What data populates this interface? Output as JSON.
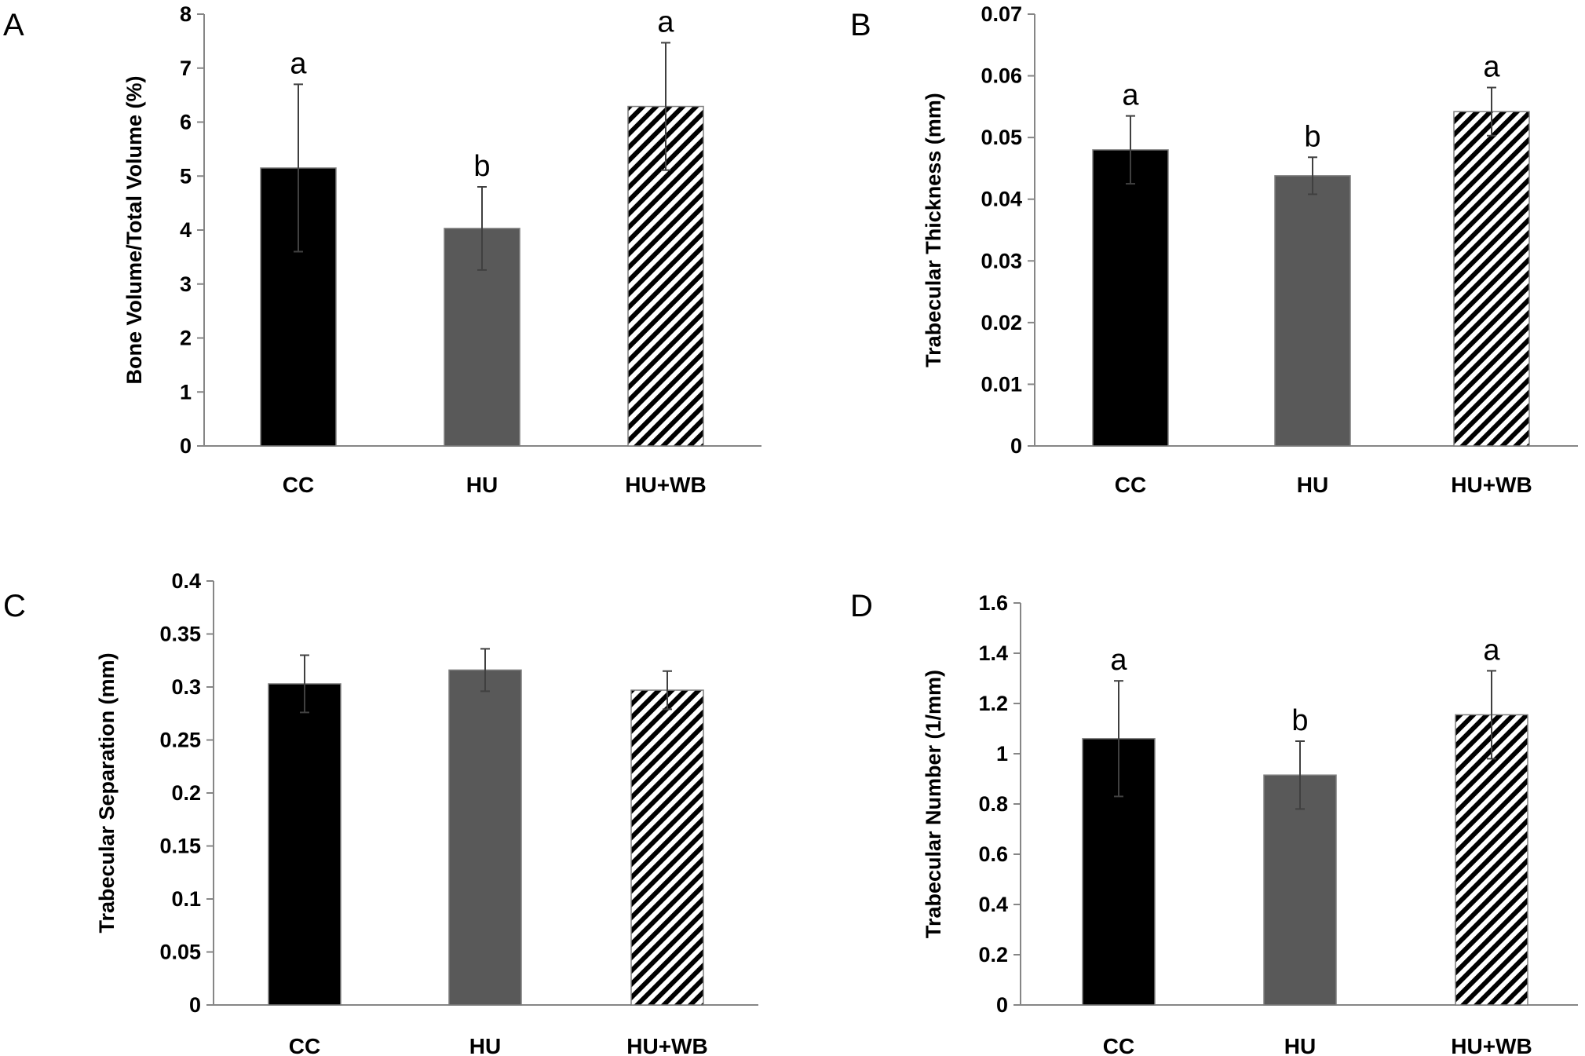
{
  "colors": {
    "CC": "#000000",
    "HU": "#595959",
    "HU+WB": "hatch",
    "axis": "#868686",
    "error": "#404040"
  },
  "chart_data": [
    {
      "panel": "A",
      "type": "bar",
      "categories": [
        "CC",
        "HU",
        "HU+WB"
      ],
      "values": [
        5.15,
        4.03,
        6.29
      ],
      "errors": [
        1.55,
        0.77,
        1.18
      ],
      "significance": [
        "a",
        "b",
        "a"
      ],
      "ylabel": "Bone Volume/Total Volume (%)",
      "ylim": [
        0,
        8
      ],
      "yticks": [
        0,
        1,
        2,
        3,
        4,
        5,
        6,
        7,
        8
      ],
      "ytick_labels": [
        "0",
        "1",
        "2",
        "3",
        "4",
        "5",
        "6",
        "7",
        "8"
      ]
    },
    {
      "panel": "B",
      "type": "bar",
      "categories": [
        "CC",
        "HU",
        "HU+WB"
      ],
      "values": [
        0.048,
        0.0438,
        0.0542
      ],
      "errors": [
        0.0055,
        0.003,
        0.0039
      ],
      "significance": [
        "a",
        "b",
        "a"
      ],
      "ylabel": "Trabecular Thickness (mm)",
      "ylim": [
        0,
        0.07
      ],
      "yticks": [
        0,
        0.01,
        0.02,
        0.03,
        0.04,
        0.05,
        0.06,
        0.07
      ],
      "ytick_labels": [
        "0",
        "0.01",
        "0.02",
        "0.03",
        "0.04",
        "0.05",
        "0.06",
        "0.07"
      ]
    },
    {
      "panel": "C",
      "type": "bar",
      "categories": [
        "CC",
        "HU",
        "HU+WB"
      ],
      "values": [
        0.303,
        0.316,
        0.297
      ],
      "errors": [
        0.027,
        0.02,
        0.018
      ],
      "significance": [
        "",
        "",
        ""
      ],
      "ylabel": "Trabecular Separation  (mm)",
      "ylim": [
        0,
        0.4
      ],
      "yticks": [
        0,
        0.05,
        0.1,
        0.15,
        0.2,
        0.25,
        0.3,
        0.35,
        0.4
      ],
      "ytick_labels": [
        "0",
        "0.05",
        "0.1",
        "0.15",
        "0.2",
        "0.25",
        "0.3",
        "0.35",
        "0.4"
      ]
    },
    {
      "panel": "D",
      "type": "bar",
      "categories": [
        "CC",
        "HU",
        "HU+WB"
      ],
      "values": [
        1.06,
        0.915,
        1.155
      ],
      "errors": [
        0.23,
        0.135,
        0.175
      ],
      "significance": [
        "a",
        "b",
        "a"
      ],
      "ylabel": "Trabecular Number (1/mm)",
      "ylim": [
        0,
        1.6
      ],
      "yticks": [
        0,
        0.2,
        0.4,
        0.6,
        0.8,
        1.0,
        1.2,
        1.4,
        1.6
      ],
      "ytick_labels": [
        "0",
        "0.2",
        "0.4",
        "0.6",
        "0.8",
        "1",
        "1.2",
        "1.4",
        "1.6"
      ]
    }
  ]
}
